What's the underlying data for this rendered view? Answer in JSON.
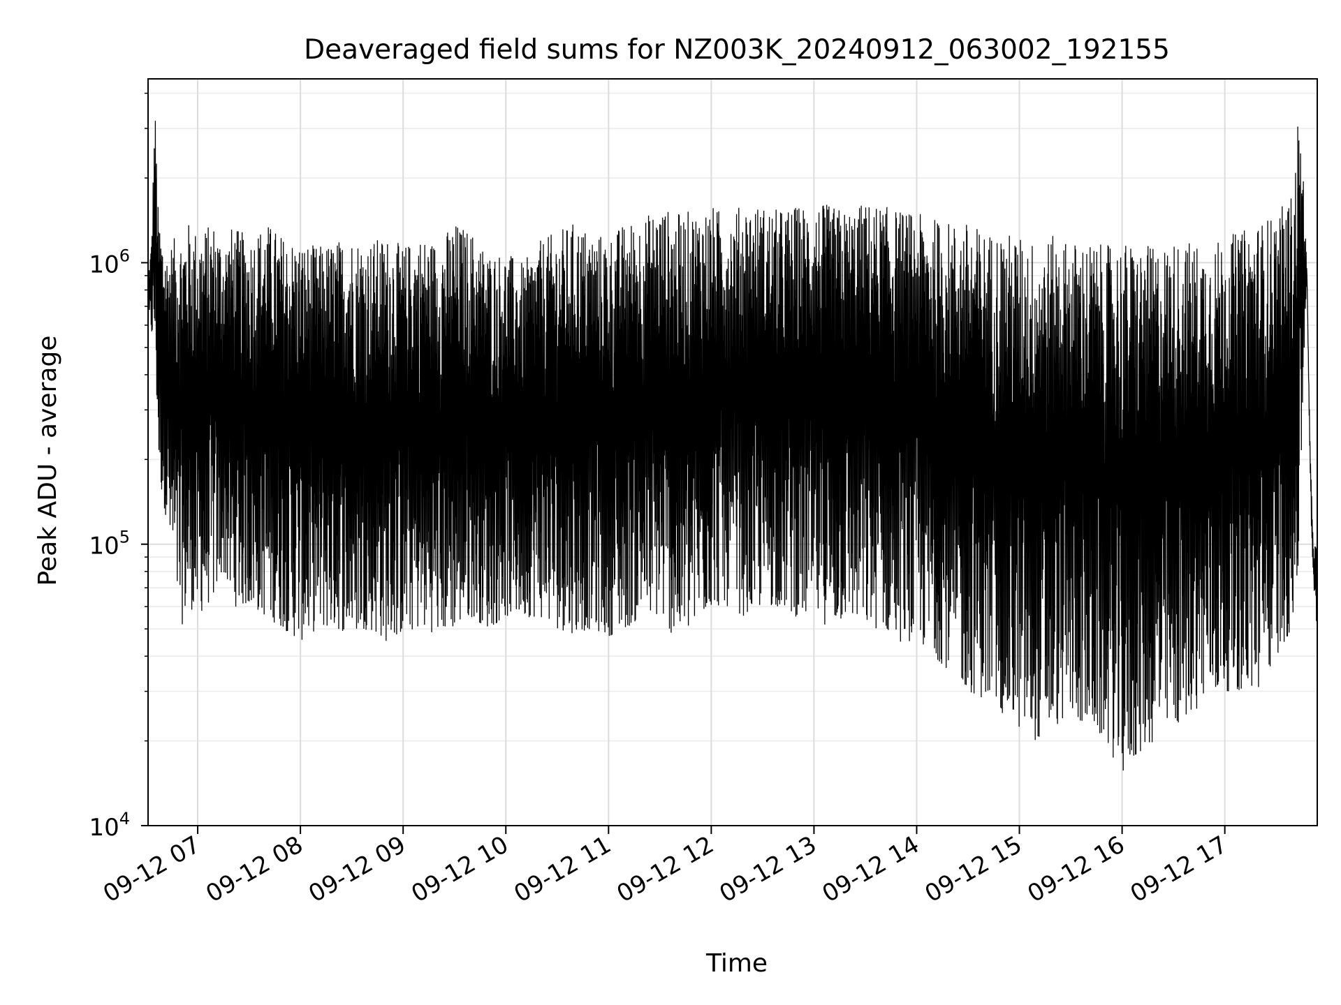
{
  "chart_data": {
    "type": "line",
    "title": "Deaveraged field sums for NZ003K_20240912_063002_192155",
    "xlabel": "Time",
    "ylabel": "Peak ADU - average",
    "yscale": "log",
    "ylim": [
      10000,
      4500000
    ],
    "xlim": [
      "09-12 06:31",
      "09-12 17:54"
    ],
    "x_tick_labels": [
      "09-12 07",
      "09-12 08",
      "09-12 09",
      "09-12 10",
      "09-12 11",
      "09-12 12",
      "09-12 13",
      "09-12 14",
      "09-12 15",
      "09-12 16",
      "09-12 17"
    ],
    "y_tick_labels": [
      {
        "value": 10000,
        "base": "10",
        "exp": "4"
      },
      {
        "value": 100000,
        "base": "10",
        "exp": "5"
      },
      {
        "value": 1000000,
        "base": "10",
        "exp": "6"
      }
    ],
    "grid": true,
    "line_color": "#000000",
    "series": [
      {
        "x": [
          "06:31",
          "06:33",
          "06:35",
          "06:37",
          "06:39",
          "06:42",
          "06:45",
          "06:50",
          "06:55",
          "07:00",
          "07:05",
          "07:10",
          "07:15",
          "07:20",
          "07:30",
          "07:40",
          "07:50",
          "08:00",
          "08:10",
          "08:20",
          "08:30",
          "08:40",
          "08:50",
          "09:00",
          "09:10",
          "09:20",
          "09:30",
          "09:40",
          "09:50",
          "10:00",
          "10:10",
          "10:20",
          "10:30",
          "10:40",
          "10:50",
          "11:00",
          "11:10",
          "11:20",
          "11:30",
          "11:40",
          "11:50",
          "12:00",
          "12:10",
          "12:20",
          "12:30",
          "12:40",
          "12:50",
          "13:00",
          "13:10",
          "13:20",
          "13:30",
          "13:40",
          "13:50",
          "14:00",
          "14:10",
          "14:20",
          "14:30",
          "14:40",
          "14:50",
          "15:00",
          "15:10",
          "15:20",
          "15:30",
          "15:40",
          "15:50",
          "16:00",
          "16:10",
          "16:20",
          "16:30",
          "16:40",
          "16:50",
          "17:00",
          "17:10",
          "17:20",
          "17:30",
          "17:40",
          "17:43",
          "17:46",
          "17:48",
          "17:50",
          "17:52",
          "17:54"
        ],
        "min": [
          600000,
          550000,
          500000,
          200000,
          150000,
          120000,
          80000,
          50000,
          60000,
          55000,
          60000,
          65000,
          80000,
          60000,
          60000,
          55000,
          50000,
          45000,
          50000,
          50000,
          48000,
          50000,
          45000,
          48000,
          50000,
          48000,
          50000,
          55000,
          50000,
          55000,
          55000,
          55000,
          50000,
          48000,
          50000,
          47000,
          50000,
          55000,
          55000,
          45000,
          50000,
          60000,
          60000,
          55000,
          60000,
          60000,
          55000,
          55000,
          50000,
          55000,
          50000,
          50000,
          45000,
          45000,
          40000,
          35000,
          30000,
          28000,
          25000,
          22000,
          20000,
          22000,
          25000,
          22000,
          20000,
          15000,
          18000,
          20000,
          22000,
          25000,
          28000,
          30000,
          30000,
          30000,
          40000,
          50000,
          80000,
          400000,
          900000,
          150000,
          60000,
          50000
        ],
        "max": [
          900000,
          1200000,
          3700000,
          1500000,
          1300000,
          1100000,
          1200000,
          1300000,
          1400000,
          1300000,
          1350000,
          1400000,
          1200000,
          1350000,
          1250000,
          1400000,
          1250000,
          1200000,
          1150000,
          1200000,
          1250000,
          1200000,
          1250000,
          1150000,
          1250000,
          1200000,
          1400000,
          1300000,
          1100000,
          1100000,
          1000000,
          1200000,
          1300000,
          1400000,
          1300000,
          1250000,
          1400000,
          1450000,
          1600000,
          1500000,
          1550000,
          1600000,
          1500000,
          1650000,
          1600000,
          1550000,
          1600000,
          1650000,
          1600000,
          1550000,
          1650000,
          1600000,
          1550000,
          1500000,
          1450000,
          1400000,
          1400000,
          1300000,
          1300000,
          1250000,
          1200000,
          1250000,
          1200000,
          1200000,
          1150000,
          1200000,
          1150000,
          1150000,
          1200000,
          1200000,
          1150000,
          1250000,
          1300000,
          1400000,
          1500000,
          1800000,
          3500000,
          2000000,
          900000,
          200000,
          100000,
          100000
        ]
      }
    ]
  }
}
